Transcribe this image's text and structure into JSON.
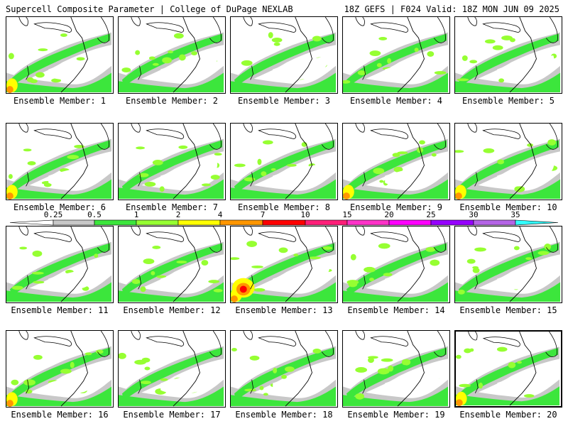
{
  "header": {
    "title": "Supercell Composite Parameter | College of DuPage NEXLAB",
    "run_info": "18Z GEFS | F024 Valid: 18Z MON JUN 09 2025"
  },
  "members": [
    {
      "label": "Ensemble Member: 1"
    },
    {
      "label": "Ensemble Member: 2"
    },
    {
      "label": "Ensemble Member: 3"
    },
    {
      "label": "Ensemble Member: 4"
    },
    {
      "label": "Ensemble Member: 5"
    },
    {
      "label": "Ensemble Member: 6"
    },
    {
      "label": "Ensemble Member: 7"
    },
    {
      "label": "Ensemble Member: 8"
    },
    {
      "label": "Ensemble Member: 9"
    },
    {
      "label": "Ensemble Member: 10"
    },
    {
      "label": "Ensemble Member: 11"
    },
    {
      "label": "Ensemble Member: 12"
    },
    {
      "label": "Ensemble Member: 13"
    },
    {
      "label": "Ensemble Member: 14"
    },
    {
      "label": "Ensemble Member: 15"
    },
    {
      "label": "Ensemble Member: 16"
    },
    {
      "label": "Ensemble Member: 17"
    },
    {
      "label": "Ensemble Member: 18"
    },
    {
      "label": "Ensemble Member: 19"
    },
    {
      "label": "Ensemble Member: 20"
    }
  ],
  "colorbar": {
    "ticks": [
      "0.25",
      "0.5",
      "1",
      "2",
      "4",
      "7",
      "10",
      "15",
      "20",
      "25",
      "30",
      "35"
    ],
    "colors": [
      "#c8c8c8",
      "#3ce63c",
      "#96ff32",
      "#ffff00",
      "#ff9600",
      "#ff0000",
      "#ff1e78",
      "#ff32c8",
      "#ff00ff",
      "#9600ff",
      "#b464e6",
      "#32ffff"
    ]
  }
}
